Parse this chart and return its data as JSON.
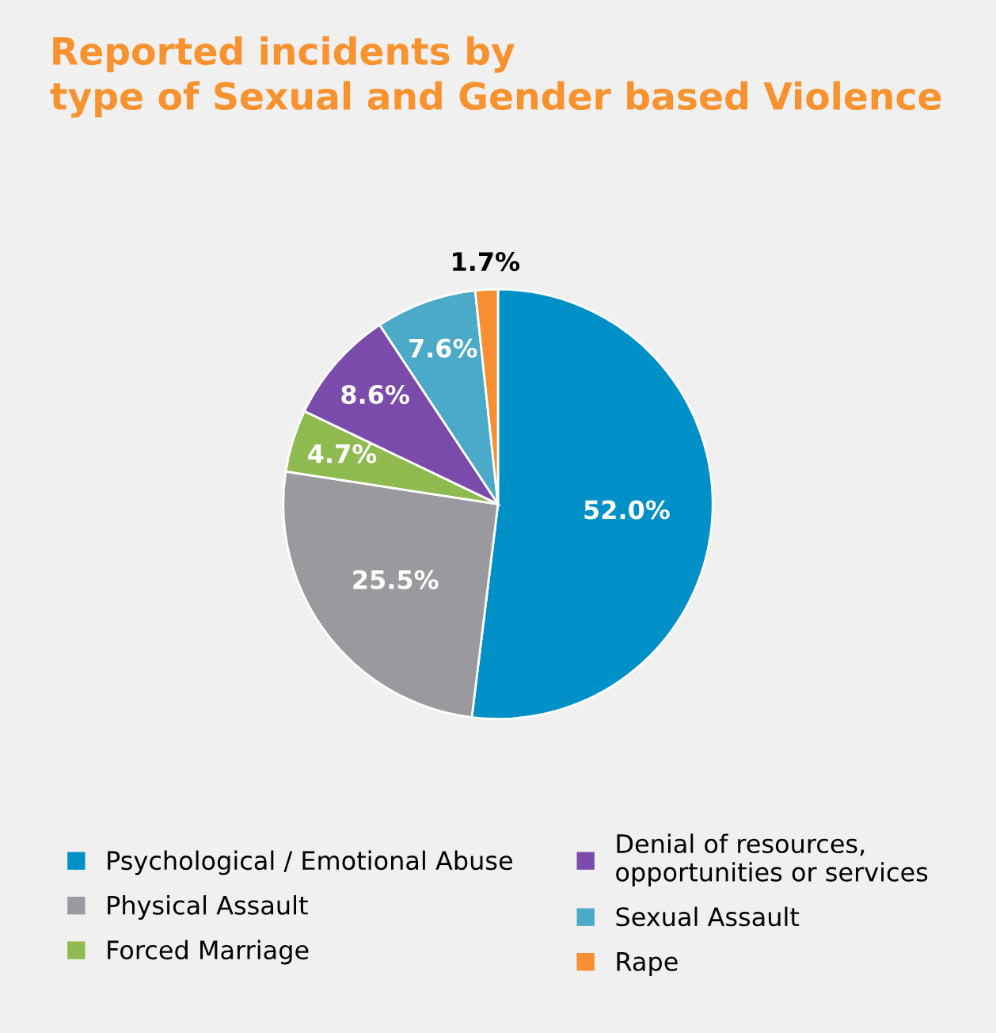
{
  "chart_data": {
    "type": "pie",
    "title": "Reported incidents by\ntype of Sexual and Gender based Violence",
    "categories": [
      "Psychological / Emotional Abuse",
      "Physical Assault",
      "Forced Marriage",
      "Denial of resources,\nopportunities or services",
      "Sexual Assault",
      "Rape"
    ],
    "values": [
      52.0,
      25.5,
      4.7,
      8.6,
      7.6,
      1.7
    ],
    "colors": [
      "#0090c8",
      "#9a999e",
      "#8fba4f",
      "#7b4bab",
      "#4aaac8",
      "#f78f32"
    ],
    "value_labels": [
      "52.0%",
      "25.5%",
      "4.7%",
      "8.6%",
      "7.6%",
      "1.7%"
    ],
    "legend": "bottom"
  }
}
